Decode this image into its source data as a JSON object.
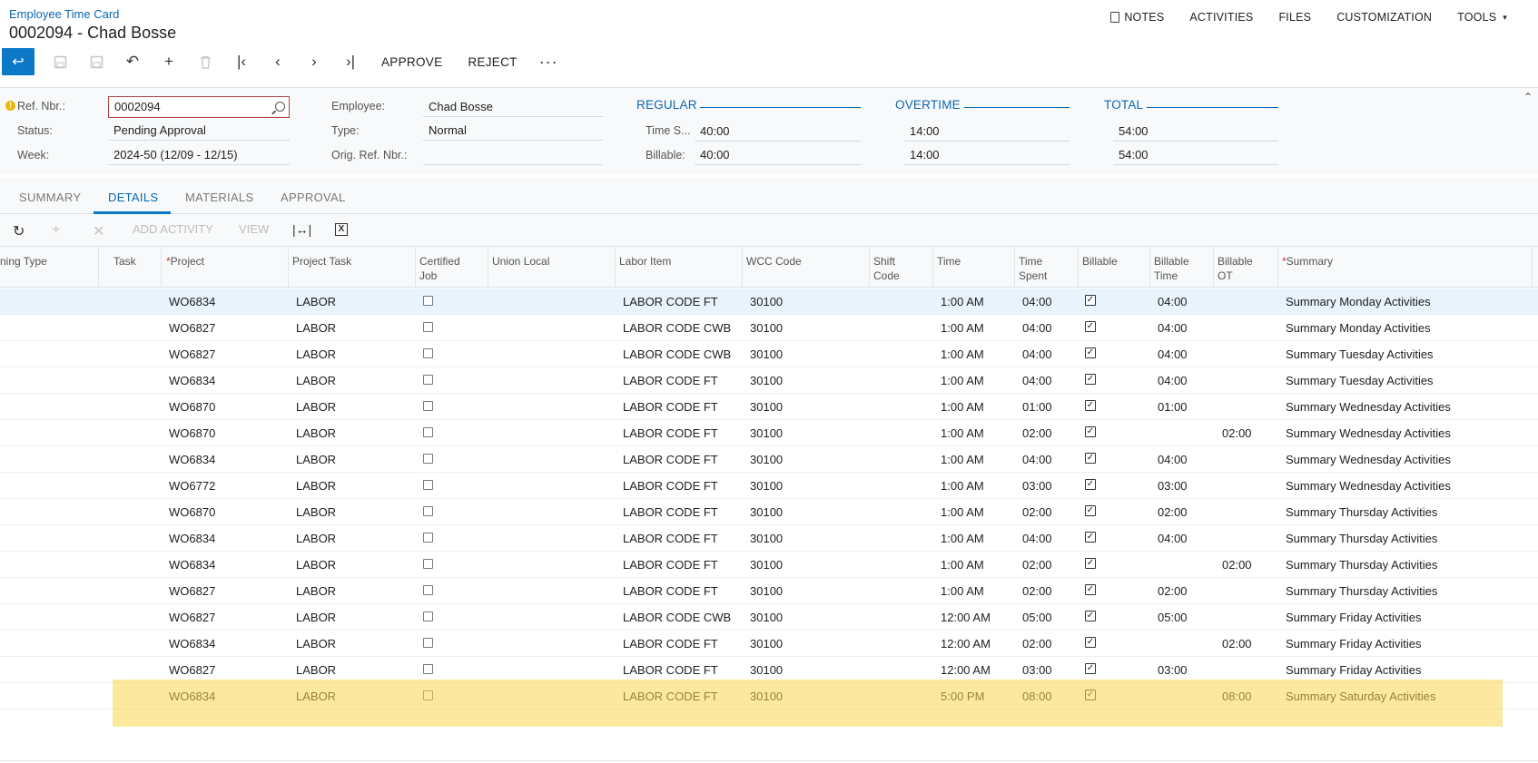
{
  "header": {
    "screen_name": "Employee Time Card",
    "doc_title": "0002094 - Chad Bosse",
    "links": [
      {
        "label": "NOTES",
        "icon": "note-icon"
      },
      {
        "label": "ACTIVITIES"
      },
      {
        "label": "FILES"
      },
      {
        "label": "CUSTOMIZATION"
      },
      {
        "label": "TOOLS",
        "caret": "▾"
      }
    ]
  },
  "toolbar": {
    "approve_label": "APPROVE",
    "reject_label": "REJECT",
    "more_label": "···"
  },
  "form": {
    "ref_nbr_label": "Ref. Nbr.:",
    "ref_nbr_value": "0002094",
    "status_label": "Status:",
    "status_value": "Pending Approval",
    "week_label": "Week:",
    "week_value": "2024-50 (12/09 - 12/15)",
    "employee_label": "Employee:",
    "employee_value": "Chad Bosse",
    "type_label": "Type:",
    "type_value": "Normal",
    "orig_ref_label": "Orig. Ref. Nbr.:",
    "orig_ref_value": "",
    "regular_title": "REGULAR",
    "overtime_title": "OVERTIME",
    "total_title": "TOTAL",
    "time_spent_label": "Time S...",
    "billable_label": "Billable:",
    "regular_time": "40:00",
    "regular_billable": "40:00",
    "overtime_time": "14:00",
    "overtime_billable": "14:00",
    "total_time": "54:00",
    "total_billable": "54:00"
  },
  "tabs": [
    "SUMMARY",
    "DETAILS",
    "MATERIALS",
    "APPROVAL"
  ],
  "active_tab": "DETAILS",
  "grid_toolbar": {
    "add_activity_label": "ADD ACTIVITY",
    "view_label": "VIEW"
  },
  "grid": {
    "columns": {
      "earning_type": "ning Type",
      "task": "Task",
      "project": "Project",
      "project_task": "Project Task",
      "certified_job_1": "Certified",
      "certified_job_2": "Job",
      "union_local": "Union Local",
      "labor_item": "Labor Item",
      "wcc_code": "WCC Code",
      "shift_code_1": "Shift",
      "shift_code_2": "Code",
      "time": "Time",
      "time_spent_1": "Time",
      "time_spent_2": "Spent",
      "billable": "Billable",
      "billable_time_1": "Billable",
      "billable_time_2": "Time",
      "billable_ot_1": "Billable",
      "billable_ot_2": "OT",
      "summary": "Summary",
      "required_mark": "*"
    },
    "rows": [
      {
        "project": "WO6834",
        "project_task": "LABOR",
        "labor_item": "LABOR CODE FT",
        "wcc": "30100",
        "time": "1:00 AM",
        "time_spent": "04:00",
        "billable_time": "04:00",
        "billable_ot": "",
        "summary": "Summary Monday Activities"
      },
      {
        "project": "WO6827",
        "project_task": "LABOR",
        "labor_item": "LABOR CODE CWB",
        "wcc": "30100",
        "time": "1:00 AM",
        "time_spent": "04:00",
        "billable_time": "04:00",
        "billable_ot": "",
        "summary": "Summary Monday Activities"
      },
      {
        "project": "WO6827",
        "project_task": "LABOR",
        "labor_item": "LABOR CODE CWB",
        "wcc": "30100",
        "time": "1:00 AM",
        "time_spent": "04:00",
        "billable_time": "04:00",
        "billable_ot": "",
        "summary": "Summary Tuesday Activities"
      },
      {
        "project": "WO6834",
        "project_task": "LABOR",
        "labor_item": "LABOR CODE FT",
        "wcc": "30100",
        "time": "1:00 AM",
        "time_spent": "04:00",
        "billable_time": "04:00",
        "billable_ot": "",
        "summary": "Summary Tuesday Activities"
      },
      {
        "project": "WO6870",
        "project_task": "LABOR",
        "labor_item": "LABOR CODE FT",
        "wcc": "30100",
        "time": "1:00 AM",
        "time_spent": "01:00",
        "billable_time": "01:00",
        "billable_ot": "",
        "summary": "Summary Wednesday Activities"
      },
      {
        "project": "WO6870",
        "project_task": "LABOR",
        "labor_item": "LABOR CODE FT",
        "wcc": "30100",
        "time": "1:00 AM",
        "time_spent": "02:00",
        "billable_time": "",
        "billable_ot": "02:00",
        "summary": "Summary Wednesday Activities"
      },
      {
        "project": "WO6834",
        "project_task": "LABOR",
        "labor_item": "LABOR CODE FT",
        "wcc": "30100",
        "time": "1:00 AM",
        "time_spent": "04:00",
        "billable_time": "04:00",
        "billable_ot": "",
        "summary": "Summary Wednesday Activities"
      },
      {
        "project": "WO6772",
        "project_task": "LABOR",
        "labor_item": "LABOR CODE FT",
        "wcc": "30100",
        "time": "1:00 AM",
        "time_spent": "03:00",
        "billable_time": "03:00",
        "billable_ot": "",
        "summary": "Summary Wednesday Activities"
      },
      {
        "project": "WO6870",
        "project_task": "LABOR",
        "labor_item": "LABOR CODE FT",
        "wcc": "30100",
        "time": "1:00 AM",
        "time_spent": "02:00",
        "billable_time": "02:00",
        "billable_ot": "",
        "summary": "Summary Thursday Activities"
      },
      {
        "project": "WO6834",
        "project_task": "LABOR",
        "labor_item": "LABOR CODE FT",
        "wcc": "30100",
        "time": "1:00 AM",
        "time_spent": "04:00",
        "billable_time": "04:00",
        "billable_ot": "",
        "summary": "Summary Thursday Activities"
      },
      {
        "project": "WO6834",
        "project_task": "LABOR",
        "labor_item": "LABOR CODE FT",
        "wcc": "30100",
        "time": "1:00 AM",
        "time_spent": "02:00",
        "billable_time": "",
        "billable_ot": "02:00",
        "summary": "Summary Thursday Activities"
      },
      {
        "project": "WO6827",
        "project_task": "LABOR",
        "labor_item": "LABOR CODE FT",
        "wcc": "30100",
        "time": "1:00 AM",
        "time_spent": "02:00",
        "billable_time": "02:00",
        "billable_ot": "",
        "summary": "Summary Thursday Activities"
      },
      {
        "project": "WO6827",
        "project_task": "LABOR",
        "labor_item": "LABOR CODE CWB",
        "wcc": "30100",
        "time": "12:00 AM",
        "time_spent": "05:00",
        "billable_time": "05:00",
        "billable_ot": "",
        "summary": "Summary Friday Activities"
      },
      {
        "project": "WO6834",
        "project_task": "LABOR",
        "labor_item": "LABOR CODE FT",
        "wcc": "30100",
        "time": "12:00 AM",
        "time_spent": "02:00",
        "billable_time": "",
        "billable_ot": "02:00",
        "summary": "Summary Friday Activities"
      },
      {
        "project": "WO6827",
        "project_task": "LABOR",
        "labor_item": "LABOR CODE FT",
        "wcc": "30100",
        "time": "12:00 AM",
        "time_spent": "03:00",
        "billable_time": "03:00",
        "billable_ot": "",
        "summary": "Summary Friday Activities"
      },
      {
        "project": "WO6834",
        "project_task": "LABOR",
        "labor_item": "LABOR CODE FT",
        "wcc": "30100",
        "time": "5:00 PM",
        "time_spent": "08:00",
        "billable_time": "",
        "billable_ot": "08:00",
        "summary": "Summary Saturday Activities"
      }
    ]
  },
  "colors": {
    "accent": "#0c79c8",
    "link": "#0c66b1",
    "highlight": "#fad750",
    "required": "#c0392b"
  }
}
